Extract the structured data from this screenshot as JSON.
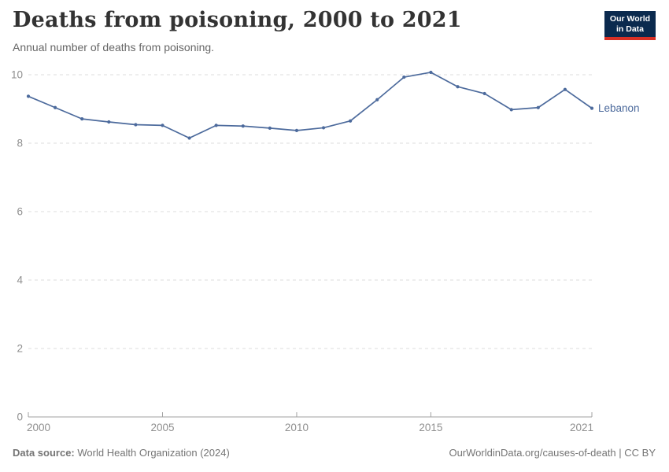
{
  "header": {
    "title": "Deaths from poisoning, 2000 to 2021",
    "subtitle": "Annual number of deaths from poisoning.",
    "logo": {
      "line1": "Our World",
      "line2": "in Data"
    }
  },
  "footer": {
    "source_label": "Data source:",
    "source_value": "World Health Organization (2024)",
    "credit": "OurWorldinData.org/causes-of-death | CC BY"
  },
  "colors": {
    "line": "#4C6A9C",
    "grid": "#dcdcdc",
    "axis": "#a1a1a1",
    "tick_label": "#8f8f8f",
    "title": "#333333",
    "subtitle": "#666666",
    "footer": "#757575",
    "logo_bg": "#0b2a4e",
    "logo_red": "#d93025",
    "logo_text": "#ffffff"
  },
  "chart_data": {
    "type": "line",
    "title": "Deaths from poisoning, 2000 to 2021",
    "subtitle": "Annual number of deaths from poisoning.",
    "xlabel": "",
    "ylabel": "",
    "xlim": [
      2000,
      2021
    ],
    "ylim": [
      0,
      10
    ],
    "xticks": [
      2000,
      2005,
      2010,
      2015,
      2021
    ],
    "yticks": [
      0,
      2,
      4,
      6,
      8,
      10
    ],
    "grid": "dashed-horizontal",
    "legend_position": "end-of-line",
    "series": [
      {
        "name": "Lebanon",
        "color": "#4C6A9C",
        "x": [
          2000,
          2001,
          2002,
          2003,
          2004,
          2005,
          2006,
          2007,
          2008,
          2009,
          2010,
          2011,
          2012,
          2013,
          2014,
          2015,
          2016,
          2017,
          2018,
          2019,
          2020,
          2021
        ],
        "values": [
          9.37,
          9.04,
          8.71,
          8.62,
          8.54,
          8.52,
          8.15,
          8.52,
          8.5,
          8.44,
          8.37,
          8.45,
          8.65,
          9.27,
          9.93,
          10.07,
          9.65,
          9.45,
          8.98,
          9.04,
          9.57,
          9.02
        ]
      }
    ]
  }
}
